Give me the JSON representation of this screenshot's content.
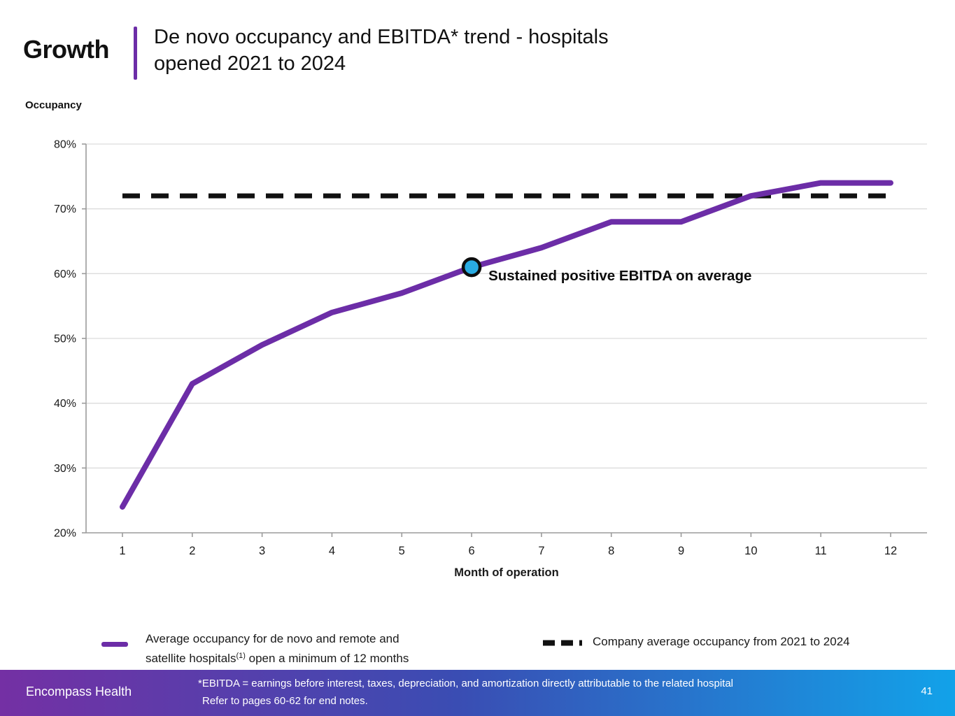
{
  "header": {
    "kicker": "Growth",
    "title_line1": "De novo occupancy and EBITDA* trend - hospitals",
    "title_line2": "opened 2021 to 2024"
  },
  "chart_data": {
    "type": "line",
    "ylabel": "Occupancy",
    "xlabel": "Month of operation",
    "x": [
      1,
      2,
      3,
      4,
      5,
      6,
      7,
      8,
      9,
      10,
      11,
      12
    ],
    "series": [
      {
        "name": "Average occupancy for de novo and remote and satellite hospitals(1) open a minimum of 12 months",
        "style": "solid",
        "color": "#6C2DA7",
        "values": [
          24,
          43,
          49,
          54,
          57,
          61,
          64,
          68,
          68,
          72,
          74,
          74
        ]
      },
      {
        "name": "Company average occupancy from 2021 to 2024",
        "style": "dashed",
        "color": "#111111",
        "value": 72
      }
    ],
    "ylim": [
      20,
      80
    ],
    "ytick_values": [
      20,
      30,
      40,
      50,
      60,
      70,
      80
    ],
    "ytick_labels": [
      "20%",
      "30%",
      "40%",
      "50%",
      "60%",
      "70%",
      "80%"
    ],
    "grid": true,
    "legend_position": "bottom",
    "annotation": {
      "text": "Sustained positive EBITDA on average",
      "x": 6,
      "y": 61,
      "marker_color": "#29ABE2"
    },
    "colors": {
      "grid": "#DCDCDC",
      "axis": "#9B9B9B",
      "tick_text": "#1a1a1a"
    }
  },
  "legend": {
    "item1": {
      "line1": "Average occupancy for de novo and remote and",
      "line2_pre": "satellite hospitals",
      "sup": "(1)",
      "line2_post": " open a minimum of 12 months",
      "swatch_color": "#6C2DA7"
    },
    "item2": {
      "label": "Company average occupancy from 2021 to 2024",
      "swatch_color": "#111111"
    }
  },
  "footer": {
    "brand": "Encompass Health",
    "footnote_line1": "*EBITDA = earnings before interest, taxes, depreciation, and amortization directly attributable to the related hospital",
    "footnote_line2": "Refer to pages 60-62 for end notes.",
    "page_number": "41",
    "gradient_left": "#7430A4",
    "gradient_mid": "#3A4DB3",
    "gradient_right": "#12A2E9"
  }
}
